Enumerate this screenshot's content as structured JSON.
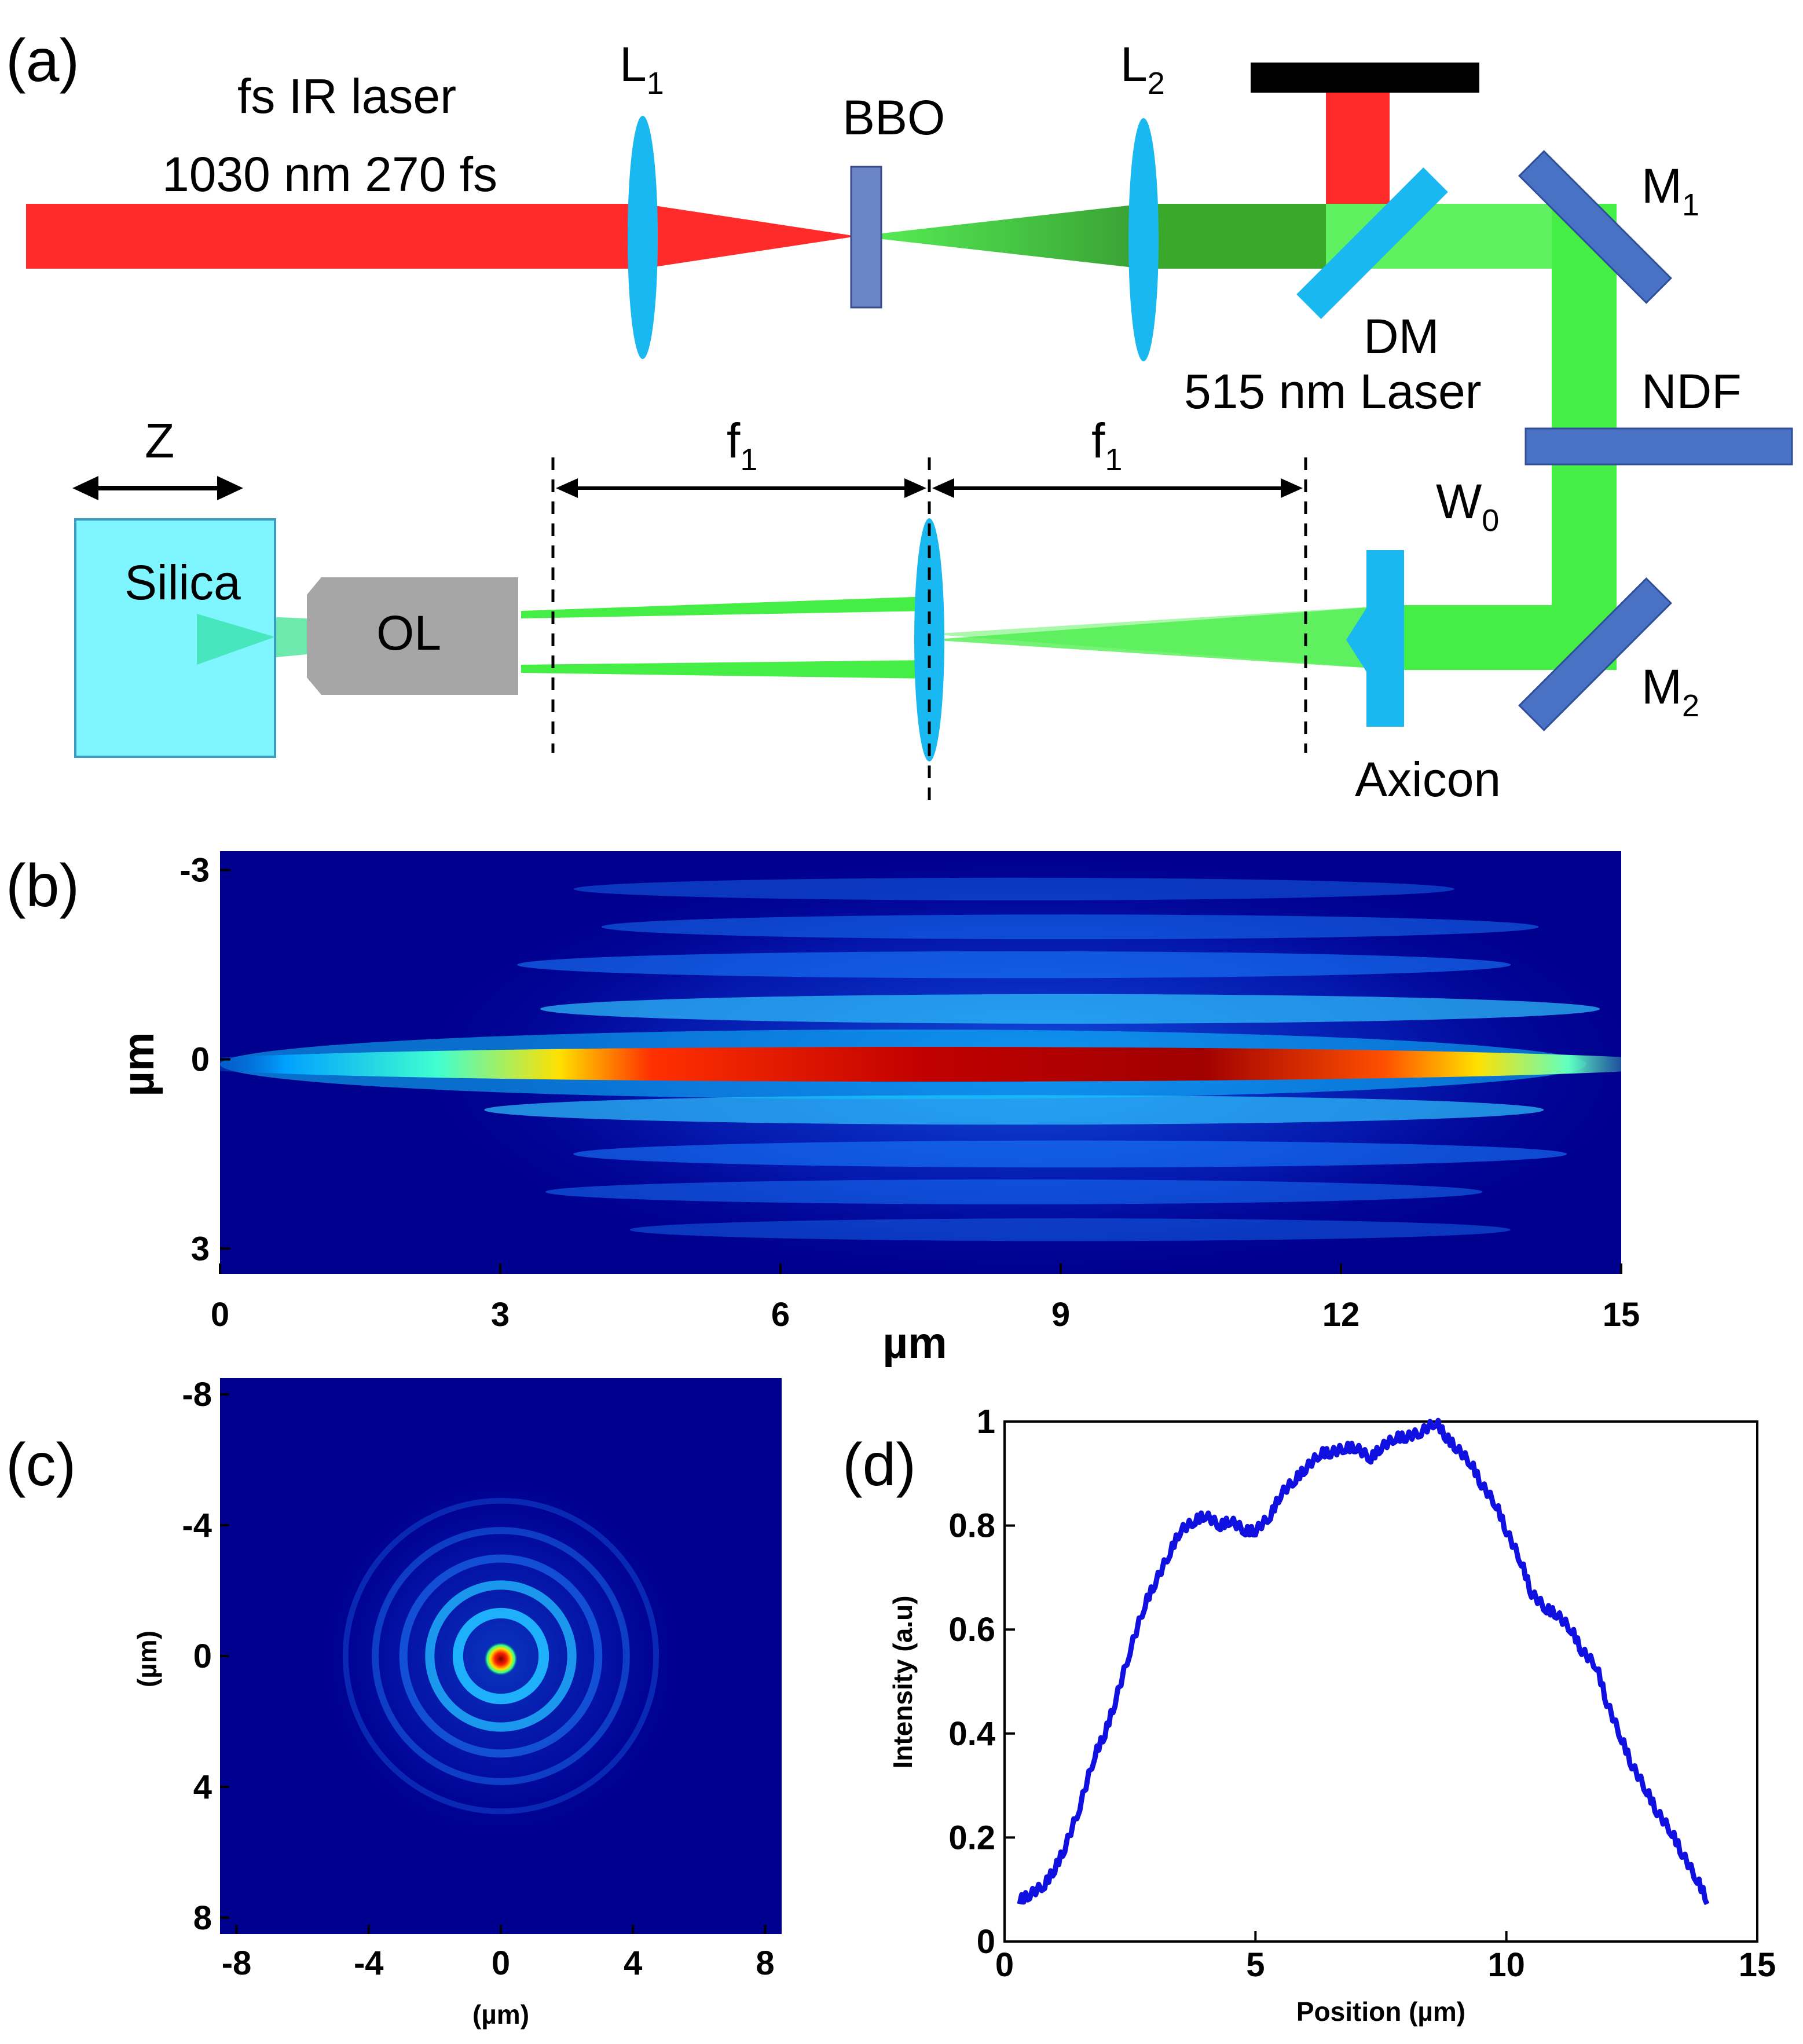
{
  "panel_a": {
    "label": "(a)",
    "laser_name": "fs IR laser",
    "laser_params": "1030 nm 270 fs",
    "lens1": "L",
    "lens1_sub": "1",
    "crystal": "BBO",
    "lens2": "L",
    "lens2_sub": "2",
    "mirror1": "M",
    "mirror1_sub": "1",
    "dichroic": "DM",
    "green_laser": "515 nm Laser",
    "filter": "NDF",
    "waist": "W",
    "waist_sub": "0",
    "mirror2": "M",
    "mirror2_sub": "2",
    "axicon": "Axicon",
    "objective": "OL",
    "sample": "Silica",
    "translation": "Z",
    "focal_left": "f",
    "focal_left_sub": "1",
    "focal_right": "f",
    "focal_right_sub": "1",
    "colors": {
      "ir": "#ff2a2a",
      "green": "#44ee44",
      "dark_green": "#3aa82a",
      "lens": "#1ab8f0",
      "mirror": "#4a72c4",
      "objective": "#a6a6a6",
      "silica": "#7ff5ff",
      "block": "#000000"
    }
  },
  "panel_b": {
    "label": "(b)",
    "chart_data": {
      "type": "heatmap",
      "title": "",
      "xlabel": "µm",
      "ylabel": "µm",
      "xlim": [
        0,
        15
      ],
      "ylim": [
        -3.3,
        3.4
      ],
      "x_ticks": [
        "0",
        "3",
        "6",
        "9",
        "12",
        "15"
      ],
      "y_ticks": [
        "-3",
        "0",
        "3"
      ],
      "colormap": "jet"
    }
  },
  "panel_c": {
    "label": "(c)",
    "chart_data": {
      "type": "heatmap",
      "title": "",
      "xlabel": "(µm)",
      "ylabel": "(µm)",
      "xlim": [
        -8.5,
        8.5
      ],
      "ylim": [
        -8.5,
        8.5
      ],
      "x_ticks": [
        "-8",
        "-4",
        "0",
        "4",
        "8"
      ],
      "y_ticks": [
        "-8",
        "-4",
        "0",
        "4",
        "8"
      ],
      "colormap": "jet"
    }
  },
  "panel_d": {
    "label": "(d)",
    "chart_data": {
      "type": "line",
      "title": "",
      "xlabel": "Position (µm)",
      "ylabel": "Intensity (a.u)",
      "xlim": [
        0,
        15
      ],
      "ylim": [
        0,
        1
      ],
      "x_ticks": [
        "0",
        "5",
        "10",
        "15"
      ],
      "y_ticks": [
        "0",
        "0.2",
        "0.4",
        "0.6",
        "0.8",
        "1"
      ],
      "series": [
        {
          "name": "Intensity",
          "color": "#1010e0",
          "x": [
            0.3,
            0.5,
            0.8,
            1.0,
            1.2,
            1.5,
            1.8,
            2.0,
            2.2,
            2.5,
            2.8,
            3.0,
            3.3,
            3.5,
            3.8,
            4.0,
            4.3,
            4.5,
            4.8,
            5.0,
            5.3,
            5.5,
            5.8,
            6.0,
            6.3,
            6.5,
            6.8,
            7.0,
            7.3,
            7.5,
            7.8,
            8.0,
            8.3,
            8.6,
            8.8,
            9.0,
            9.3,
            9.5,
            9.8,
            10.0,
            10.3,
            10.5,
            10.8,
            11.0,
            11.3,
            11.5,
            11.8,
            12.0,
            12.3,
            12.5,
            12.8,
            13.0,
            13.3,
            13.5,
            13.8,
            14.0
          ],
          "values": [
            0.08,
            0.09,
            0.11,
            0.14,
            0.18,
            0.26,
            0.36,
            0.4,
            0.46,
            0.56,
            0.65,
            0.69,
            0.75,
            0.79,
            0.81,
            0.82,
            0.8,
            0.81,
            0.79,
            0.79,
            0.82,
            0.86,
            0.89,
            0.91,
            0.94,
            0.94,
            0.95,
            0.95,
            0.93,
            0.95,
            0.97,
            0.97,
            0.98,
            1.0,
            0.97,
            0.95,
            0.92,
            0.88,
            0.84,
            0.79,
            0.73,
            0.67,
            0.64,
            0.63,
            0.6,
            0.56,
            0.53,
            0.46,
            0.39,
            0.34,
            0.29,
            0.25,
            0.21,
            0.17,
            0.12,
            0.08
          ]
        }
      ]
    }
  }
}
